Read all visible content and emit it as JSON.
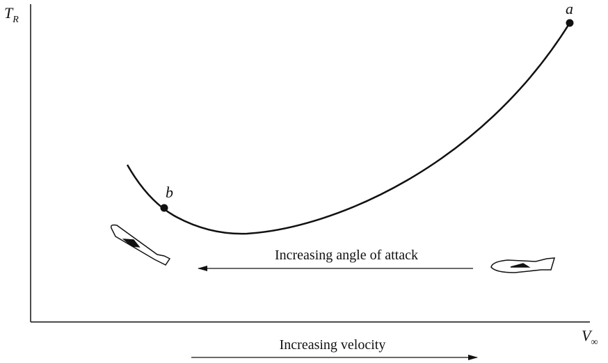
{
  "y_label": {
    "text": "T",
    "subscript": "R"
  },
  "x_label": {
    "text": "V",
    "subscript": "∞"
  },
  "points": [
    {
      "label": "a"
    },
    {
      "label": "b"
    }
  ],
  "annotations": {
    "angle_of_attack": "Increasing angle of attack",
    "velocity": "Increasing velocity"
  }
}
